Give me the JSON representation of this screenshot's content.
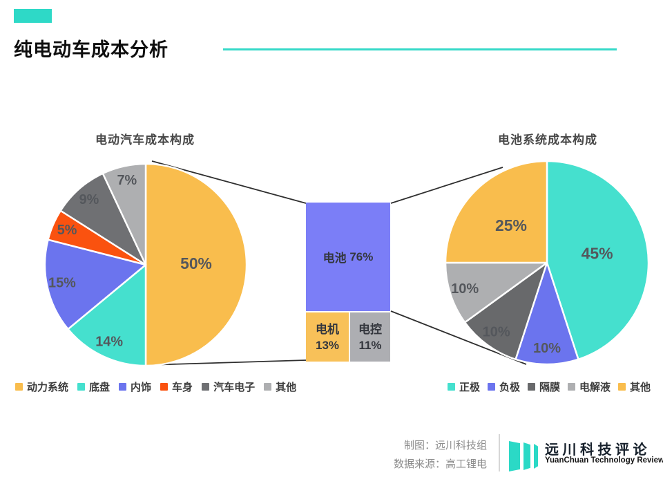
{
  "header": {
    "title": "纯电动车成本分析"
  },
  "colors": {
    "accent_teal": "#2ED9C7",
    "yellow": "#F9BD4D",
    "teal": "#45E0CE",
    "blue": "#6B74EE",
    "bar_blue": "#7B7EF7",
    "red_orange": "#FA520F",
    "dark_gray": "#6F7073",
    "light_gray": "#AEAFB1",
    "label_text": "#54575C",
    "connector_line": "#2F2F2F"
  },
  "chart_data": [
    {
      "type": "pie",
      "title": "电动汽车成本构成",
      "legend_position": "bottom",
      "start_angle": "top",
      "direction": "clockwise",
      "slices": [
        {
          "name": "动力系统",
          "value": 50,
          "label": "50%",
          "color": "#F9BD4D"
        },
        {
          "name": "底盘",
          "value": 14,
          "label": "14%",
          "color": "#45E0CE"
        },
        {
          "name": "内饰",
          "value": 15,
          "label": "15%",
          "color": "#6B74EE"
        },
        {
          "name": "车身",
          "value": 5,
          "label": "5%",
          "color": "#FA520F"
        },
        {
          "name": "汽车电子",
          "value": 9,
          "label": "9%",
          "color": "#6F7073"
        },
        {
          "name": "其他",
          "value": 7,
          "label": "7%",
          "color": "#AEAFB1"
        }
      ]
    },
    {
      "type": "bar",
      "segments": [
        {
          "name": "电池",
          "value": 76,
          "label": "76%",
          "color": "#7B7EF7"
        },
        {
          "name": "电机",
          "value": 13,
          "label": "13%",
          "color": "#F8C159"
        },
        {
          "name": "电控",
          "value": 11,
          "label": "11%",
          "color": "#ADAEB2"
        }
      ]
    },
    {
      "type": "pie",
      "title": "电池系统成本构成",
      "legend_position": "bottom",
      "start_angle": "top",
      "direction": "clockwise",
      "slices": [
        {
          "name": "正极",
          "value": 45,
          "label": "45%",
          "color": "#45E0CE"
        },
        {
          "name": "负极",
          "value": 10,
          "label": "10%",
          "color": "#6B74EE"
        },
        {
          "name": "隔膜",
          "value": 10,
          "label": "10%",
          "color": "#68696B"
        },
        {
          "name": "电解液",
          "value": 10,
          "label": "10%",
          "color": "#AEAFB1"
        },
        {
          "name": "其他",
          "value": 25,
          "label": "25%",
          "color": "#F9BD4D"
        }
      ]
    }
  ],
  "footer": {
    "credit_maker": "制图：远川科技组",
    "credit_source": "数据来源：高工锂电",
    "brand_cn": "远川科技评论",
    "brand_en": "YuanChuan Technology Review"
  }
}
